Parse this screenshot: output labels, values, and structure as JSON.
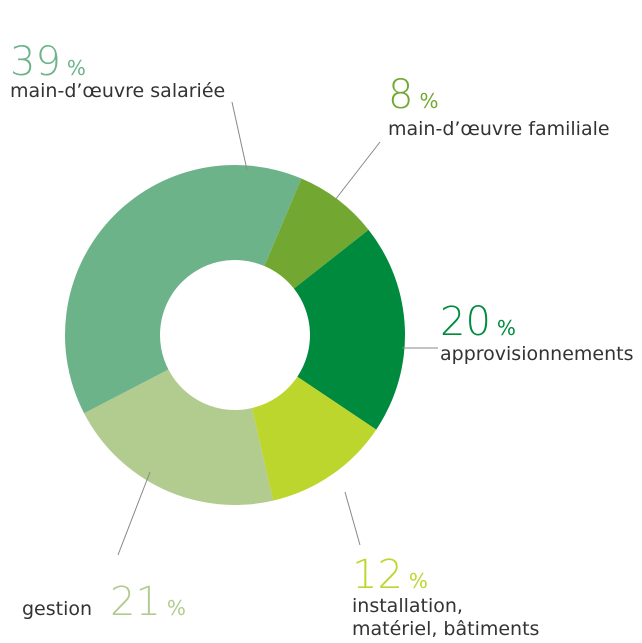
{
  "chart_data": {
    "type": "donut",
    "labels": [
      [
        "main-d’œuvre salariée"
      ],
      [
        "main-d’œuvre familiale"
      ],
      [
        "approvisionnements"
      ],
      [
        "installation,",
        "matériel, bâtiments"
      ],
      [
        "gestion"
      ]
    ],
    "values": [
      39,
      8,
      20,
      12,
      21
    ],
    "unit": "%",
    "colors": [
      "#6db38a",
      "#72a832",
      "#008a3e",
      "#bcd62e",
      "#b2cb8e"
    ]
  }
}
